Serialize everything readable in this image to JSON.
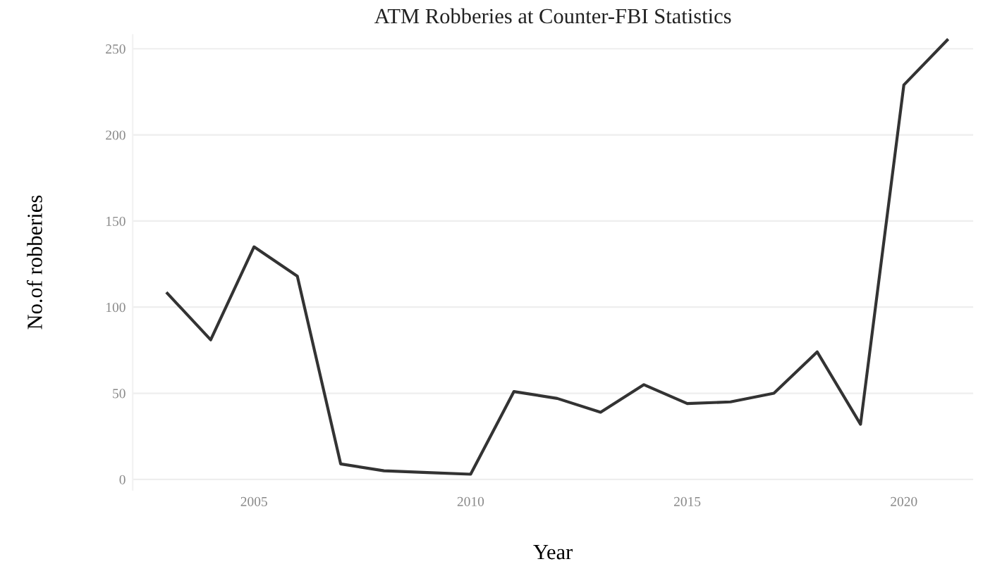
{
  "chart_data": {
    "type": "line",
    "title": "ATM Robberies at Counter-FBI Statistics",
    "xlabel": "Year",
    "ylabel": "No.of robberies",
    "x": [
      2003,
      2004,
      2005,
      2006,
      2007,
      2008,
      2009,
      2010,
      2011,
      2012,
      2013,
      2014,
      2015,
      2016,
      2017,
      2018,
      2019,
      2020,
      2021
    ],
    "series": [
      {
        "color": "#333333",
        "values": [
          108,
          81,
          135,
          118,
          9,
          5,
          4,
          3,
          51,
          47,
          39,
          55,
          44,
          45,
          50,
          74,
          32,
          229,
          255
        ]
      }
    ],
    "xlim": [
      2002.2,
      2021.6
    ],
    "xticks": [
      2005,
      2010,
      2015,
      2020
    ],
    "ylim": [
      -6,
      258
    ],
    "yticks": [
      0,
      50,
      100,
      150,
      200,
      250
    ],
    "grid": "y",
    "legend": false,
    "marker": "none",
    "line_style": "solid"
  }
}
